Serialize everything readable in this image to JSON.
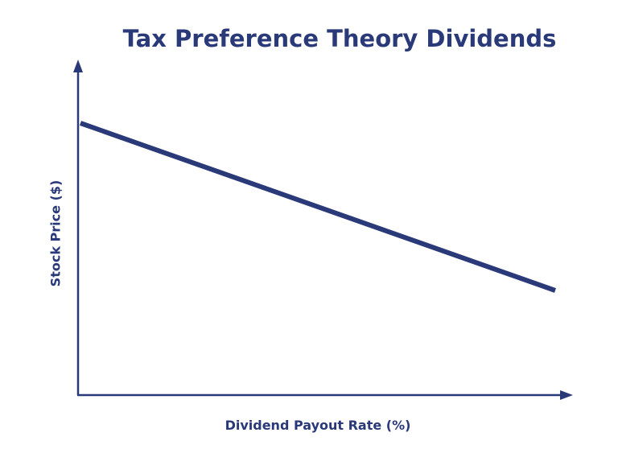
{
  "title": "Tax Preference Theory Dividends",
  "x_axis_label": "Dividend Payout Rate (%)",
  "y_axis_label": "Stock Price ($)"
}
